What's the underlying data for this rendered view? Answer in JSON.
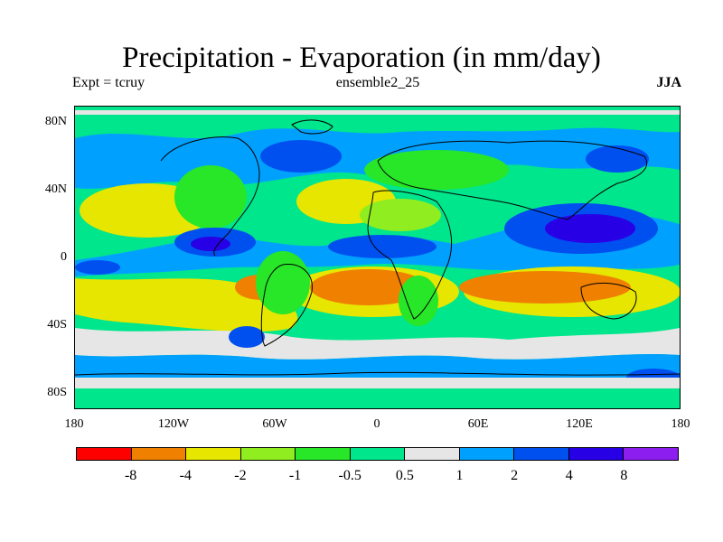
{
  "header": {
    "title": "Precipitation - Evaporation (in mm/day)",
    "left": "Expt = tcruy",
    "center": "ensemble2_25",
    "right": "JJA"
  },
  "map": {
    "lat_labels": [
      "80N",
      "40N",
      "0",
      "40S",
      "80S"
    ],
    "lon_labels": [
      "180",
      "120W",
      "60W",
      "0",
      "60E",
      "120E",
      "180"
    ]
  },
  "legend": {
    "colors": [
      "#ff0000",
      "#f08000",
      "#e6e600",
      "#90ee20",
      "#28e628",
      "#00e68c",
      "#e6e6e6",
      "#00a0ff",
      "#0050f0",
      "#2800e6",
      "#8c1ef0"
    ],
    "labels": [
      "-8",
      "-4",
      "-2",
      "-1",
      "-0.5",
      "0.5",
      "1",
      "2",
      "4",
      "8"
    ]
  }
}
